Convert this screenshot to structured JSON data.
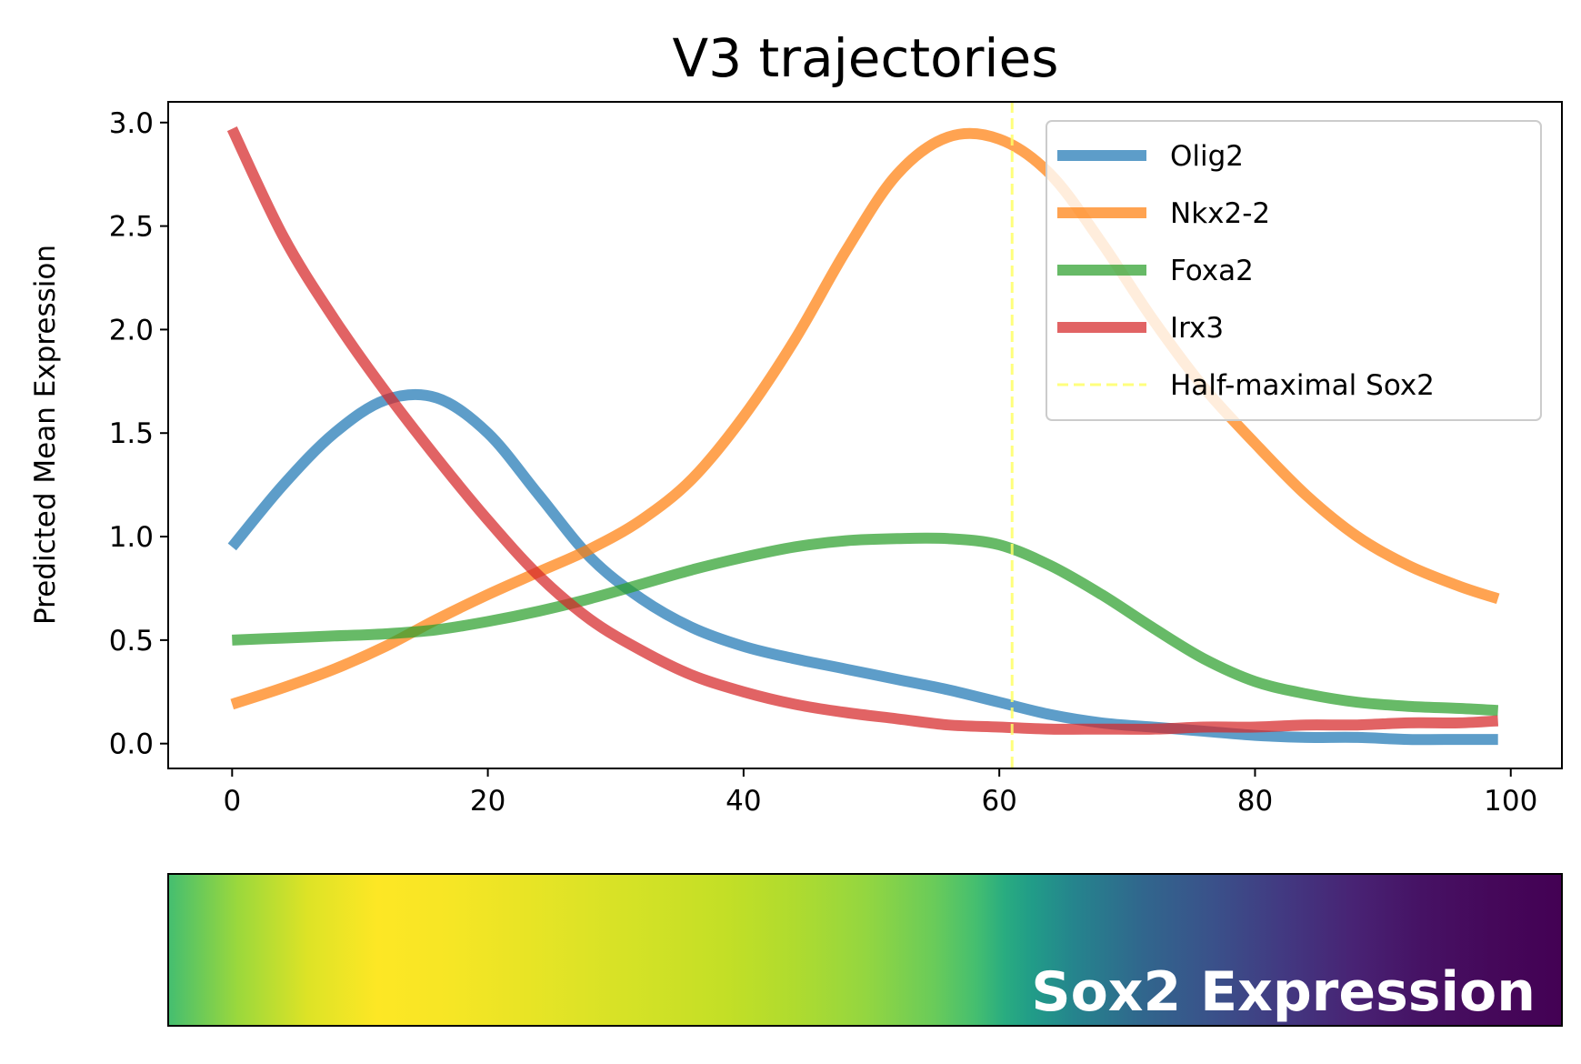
{
  "chart_data": [
    {
      "type": "line",
      "title": "V3 trajectories",
      "xlabel": "",
      "ylabel": "Predicted Mean Expression",
      "xlim": [
        -5,
        104
      ],
      "ylim": [
        -0.12,
        3.1
      ],
      "xticks": [
        0,
        20,
        40,
        60,
        80,
        100
      ],
      "xtick_labels": [
        "0",
        "20",
        "40",
        "60",
        "80",
        "100"
      ],
      "yticks": [
        0.0,
        0.5,
        1.0,
        1.5,
        2.0,
        2.5,
        3.0
      ],
      "ytick_labels": [
        "0.0",
        "0.5",
        "1.0",
        "1.5",
        "2.0",
        "2.5",
        "3.0"
      ],
      "grid": false,
      "legend_position": "top-right",
      "x": [
        0,
        4,
        8,
        12,
        16,
        20,
        24,
        28,
        32,
        36,
        40,
        44,
        48,
        52,
        56,
        60,
        64,
        68,
        72,
        76,
        80,
        84,
        88,
        92,
        96,
        99
      ],
      "series": [
        {
          "name": "Olig2",
          "color": "#1f77b4",
          "values": [
            0.95,
            1.25,
            1.5,
            1.66,
            1.67,
            1.5,
            1.2,
            0.9,
            0.7,
            0.56,
            0.47,
            0.41,
            0.36,
            0.31,
            0.26,
            0.2,
            0.14,
            0.1,
            0.08,
            0.06,
            0.04,
            0.03,
            0.03,
            0.02,
            0.02,
            0.02
          ]
        },
        {
          "name": "Nkx2-2",
          "color": "#ff7f0e",
          "values": [
            0.19,
            0.27,
            0.36,
            0.47,
            0.6,
            0.72,
            0.83,
            0.94,
            1.08,
            1.28,
            1.58,
            1.95,
            2.38,
            2.75,
            2.93,
            2.92,
            2.75,
            2.42,
            2.05,
            1.72,
            1.45,
            1.2,
            1.0,
            0.86,
            0.76,
            0.7
          ]
        },
        {
          "name": "Foxa2",
          "color": "#2ca02c",
          "values": [
            0.5,
            0.51,
            0.52,
            0.53,
            0.55,
            0.59,
            0.64,
            0.7,
            0.77,
            0.84,
            0.9,
            0.95,
            0.98,
            0.99,
            0.99,
            0.96,
            0.86,
            0.72,
            0.56,
            0.41,
            0.3,
            0.24,
            0.2,
            0.18,
            0.17,
            0.16
          ]
        },
        {
          "name": "Irx3",
          "color": "#d62728",
          "values": [
            2.97,
            2.45,
            2.05,
            1.7,
            1.38,
            1.08,
            0.81,
            0.6,
            0.45,
            0.33,
            0.25,
            0.19,
            0.15,
            0.12,
            0.09,
            0.08,
            0.07,
            0.07,
            0.07,
            0.08,
            0.08,
            0.09,
            0.09,
            0.1,
            0.1,
            0.11
          ]
        }
      ],
      "annotations": [
        {
          "type": "vline",
          "x": 61,
          "label": "Half-maximal Sox2",
          "color": "#ffff66",
          "style": "dashed"
        }
      ]
    },
    {
      "type": "heatmap",
      "title": "",
      "label": "Sox2 Expression",
      "colormap": "viridis",
      "x_range": [
        0,
        100
      ],
      "x": [
        0,
        5,
        10,
        15,
        20,
        25,
        30,
        35,
        40,
        45,
        50,
        55,
        58,
        60,
        62,
        65,
        70,
        75,
        80,
        85,
        90,
        95,
        100
      ],
      "values": [
        0.7,
        0.85,
        0.95,
        1.0,
        0.99,
        0.97,
        0.95,
        0.93,
        0.91,
        0.88,
        0.84,
        0.77,
        0.7,
        0.62,
        0.55,
        0.45,
        0.33,
        0.25,
        0.17,
        0.1,
        0.05,
        0.02,
        0.0
      ]
    }
  ]
}
